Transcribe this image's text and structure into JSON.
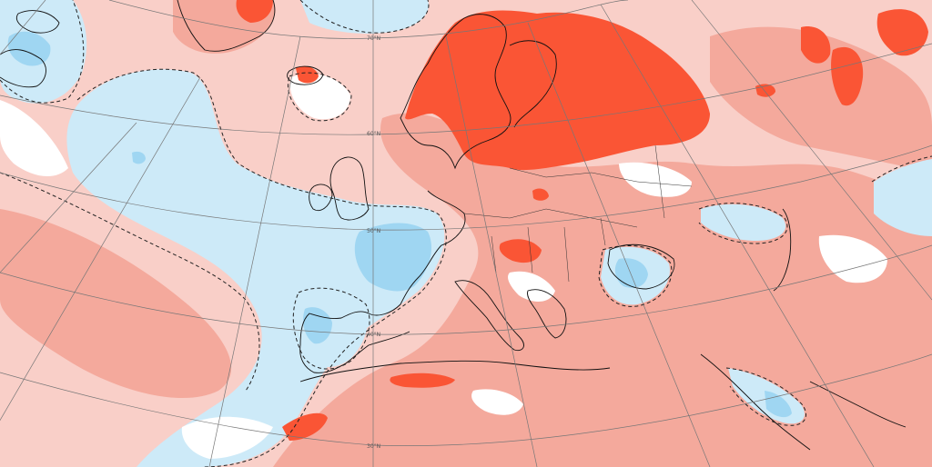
{
  "map": {
    "type": "temperature-anomaly",
    "palette": {
      "ocean_background": "#ffffff",
      "cold_anomaly_light": "#cdeaf8",
      "cold_anomaly_medium": "#9fd6f2",
      "warm_anomaly_light": "#f9cfc8",
      "warm_anomaly_medium": "#f4a99c",
      "warm_anomaly_strong": "#fa5535",
      "coastline": "#111111",
      "graticule": "#777777",
      "zero_contour": "#222222"
    },
    "latitude_labels": [
      {
        "id": "lat-70",
        "text": "70°N"
      },
      {
        "id": "lat-60",
        "text": "60°N"
      },
      {
        "id": "lat-50",
        "text": "50°N"
      },
      {
        "id": "lat-40",
        "text": "40°N"
      },
      {
        "id": "lat-30",
        "text": "30°N"
      }
    ]
  }
}
